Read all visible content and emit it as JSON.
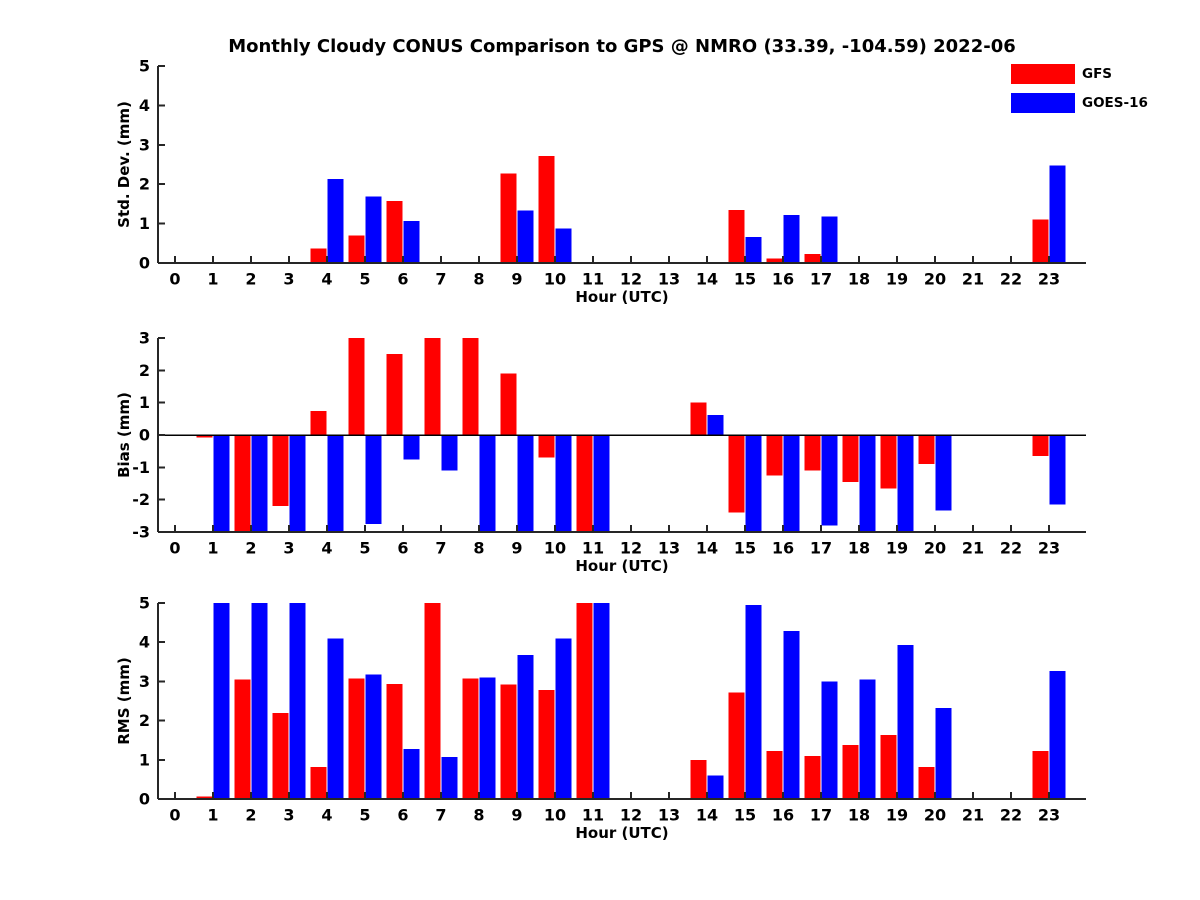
{
  "title": "Monthly Cloudy CONUS Comparison to GPS @ NMRO (33.39, -104.59) 2022-06",
  "legend": {
    "items": [
      {
        "label": "GFS",
        "color": "#ff0000"
      },
      {
        "label": "GOES-16",
        "color": "#0000ff"
      }
    ]
  },
  "chart_data": [
    {
      "type": "bar",
      "panel": "std-dev",
      "ylabel": "Std. Dev. (mm)",
      "xlabel": "Hour (UTC)",
      "ylim": [
        0,
        5
      ],
      "yticks": [
        0,
        1,
        2,
        3,
        4,
        5
      ],
      "categories": [
        0,
        1,
        2,
        3,
        4,
        5,
        6,
        7,
        8,
        9,
        10,
        11,
        12,
        13,
        14,
        15,
        16,
        17,
        18,
        19,
        20,
        21,
        22,
        23
      ],
      "legend_position": "outside-top-right",
      "grid": false,
      "series": [
        {
          "name": "GFS",
          "color": "#ff0000",
          "values": [
            0,
            0,
            0,
            0,
            0.37,
            0.7,
            1.57,
            0,
            0,
            2.27,
            2.71,
            0,
            0,
            0,
            0,
            1.35,
            0.12,
            0.23,
            0,
            0,
            0,
            0,
            0,
            1.1
          ]
        },
        {
          "name": "GOES-16",
          "color": "#0000ff",
          "values": [
            0,
            0,
            0,
            0,
            2.13,
            1.69,
            1.06,
            0,
            0,
            1.33,
            0.88,
            0,
            0,
            0,
            0,
            0.66,
            1.22,
            1.18,
            0,
            0,
            0,
            0,
            0,
            2.48
          ]
        }
      ]
    },
    {
      "type": "bar",
      "panel": "bias",
      "ylabel": "Bias (mm)",
      "xlabel": "Hour (UTC)",
      "ylim": [
        -3,
        3
      ],
      "yticks": [
        -3,
        -2,
        -1,
        0,
        1,
        2,
        3
      ],
      "zero_line": true,
      "categories": [
        0,
        1,
        2,
        3,
        4,
        5,
        6,
        7,
        8,
        9,
        10,
        11,
        12,
        13,
        14,
        15,
        16,
        17,
        18,
        19,
        20,
        21,
        22,
        23
      ],
      "grid": false,
      "series": [
        {
          "name": "GFS",
          "color": "#ff0000",
          "values": [
            0,
            -0.08,
            -3,
            -2.2,
            0.75,
            3,
            2.5,
            3,
            3,
            1.9,
            -0.7,
            -3,
            0,
            0,
            1.0,
            -2.4,
            -1.25,
            -1.1,
            -1.45,
            -1.65,
            -0.9,
            0,
            0,
            -0.65
          ]
        },
        {
          "name": "GOES-16",
          "color": "#0000ff",
          "values": [
            0,
            -3,
            -3,
            -3,
            -3,
            -2.75,
            -0.75,
            -1.1,
            -3,
            -3,
            -3,
            -3,
            0,
            0,
            0.62,
            -3,
            -3,
            -2.8,
            -3,
            -3,
            -2.33,
            0,
            0,
            -2.15
          ]
        }
      ]
    },
    {
      "type": "bar",
      "panel": "rms",
      "ylabel": "RMS (mm)",
      "xlabel": "Hour (UTC)",
      "ylim": [
        0,
        5
      ],
      "yticks": [
        0,
        1,
        2,
        3,
        4,
        5
      ],
      "categories": [
        0,
        1,
        2,
        3,
        4,
        5,
        6,
        7,
        8,
        9,
        10,
        11,
        12,
        13,
        14,
        15,
        16,
        17,
        18,
        19,
        20,
        21,
        22,
        23
      ],
      "grid": false,
      "series": [
        {
          "name": "GFS",
          "color": "#ff0000",
          "values": [
            0,
            0.07,
            3.05,
            2.2,
            0.82,
            3.08,
            2.93,
            5,
            3.08,
            2.92,
            2.78,
            5,
            0,
            0,
            1.0,
            2.72,
            1.23,
            1.1,
            1.38,
            1.63,
            0.82,
            0,
            0,
            1.23
          ]
        },
        {
          "name": "GOES-16",
          "color": "#0000ff",
          "values": [
            0,
            5,
            5,
            5,
            4.1,
            3.18,
            1.28,
            1.07,
            3.1,
            3.67,
            4.1,
            5,
            0,
            0,
            0.6,
            4.95,
            4.28,
            3.0,
            3.05,
            3.93,
            2.32,
            0,
            0,
            3.27
          ]
        }
      ]
    }
  ]
}
